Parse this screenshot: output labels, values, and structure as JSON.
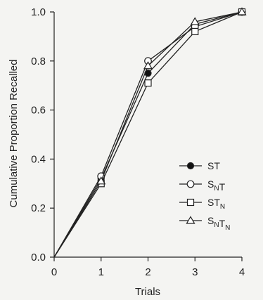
{
  "chart_data": {
    "type": "line",
    "xlabel": "Trials",
    "ylabel": "Cumulative Proportion Recalled",
    "x": [
      0,
      1,
      2,
      3,
      4
    ],
    "xlim": [
      0,
      4
    ],
    "ylim": [
      0,
      1
    ],
    "xticks": [
      "0",
      "1",
      "2",
      "3",
      "4"
    ],
    "yticks": [
      "0.0",
      "0.2",
      "0.4",
      "0.6",
      "0.8",
      "1.0"
    ],
    "grid": false,
    "legend_position": "right",
    "series": [
      {
        "name": "ST",
        "name_main": [
          "S",
          "T"
        ],
        "name_sub": [
          "",
          ""
        ],
        "marker": "filled-circle",
        "values": [
          0,
          0.32,
          0.75,
          0.95,
          1.0
        ]
      },
      {
        "name": "SNT",
        "name_main": [
          "S",
          "T"
        ],
        "name_sub": [
          "N",
          ""
        ],
        "marker": "open-circle",
        "values": [
          0,
          0.33,
          0.8,
          0.94,
          1.0
        ]
      },
      {
        "name": "STN",
        "name_main": [
          "S",
          "T"
        ],
        "name_sub": [
          "",
          "N"
        ],
        "marker": "open-square",
        "values": [
          0,
          0.3,
          0.71,
          0.92,
          1.0
        ]
      },
      {
        "name": "SNTN",
        "name_main": [
          "S",
          "T"
        ],
        "name_sub": [
          "N",
          "N"
        ],
        "marker": "open-triangle",
        "values": [
          0,
          0.31,
          0.78,
          0.96,
          1.0
        ]
      }
    ]
  }
}
